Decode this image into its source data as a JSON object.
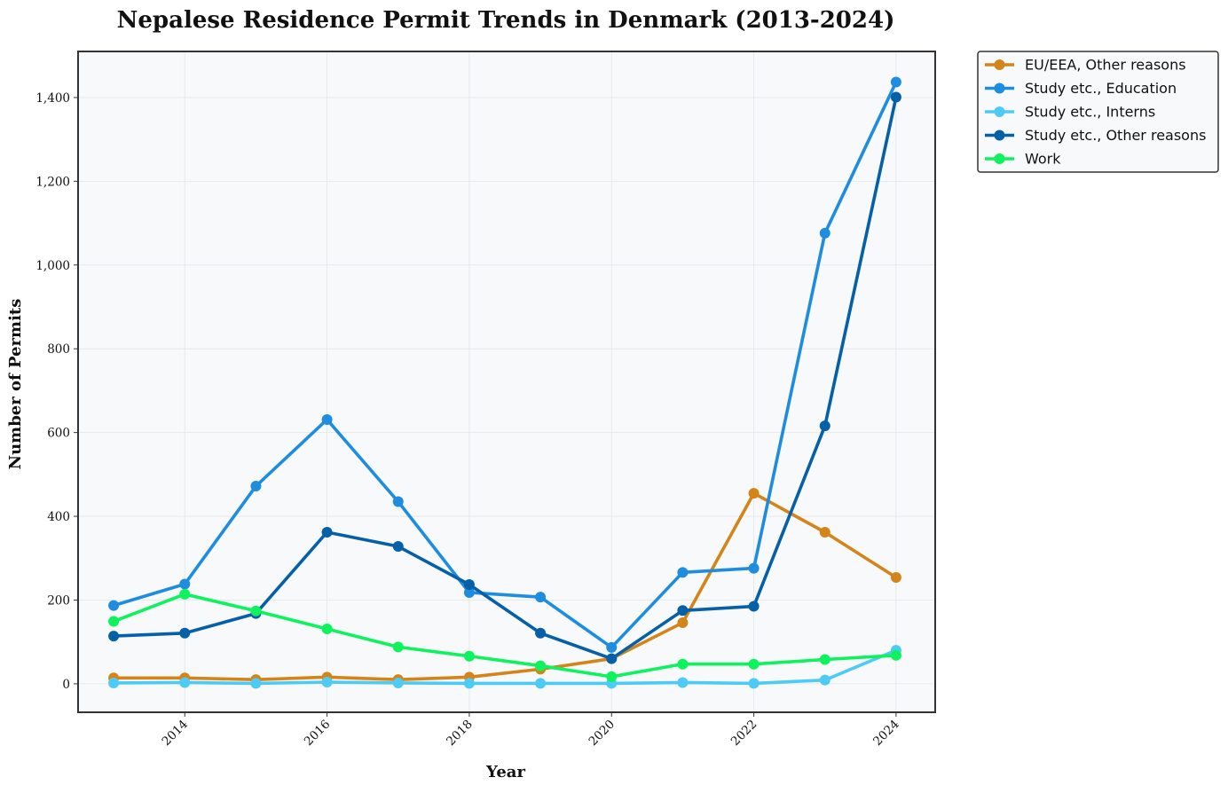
{
  "chart_data": {
    "type": "line",
    "title": "Nepalese Residence Permit Trends in Denmark (2013-2024)",
    "xlabel": "Year",
    "ylabel": "Number of Permits",
    "x": [
      2013,
      2014,
      2015,
      2016,
      2017,
      2018,
      2019,
      2020,
      2021,
      2022,
      2023,
      2024
    ],
    "xticks": [
      "2014",
      "2016",
      "2018",
      "2020",
      "2022",
      "2024"
    ],
    "yticks": [
      "0",
      "200",
      "400",
      "600",
      "800",
      "1,000",
      "1,200",
      "1,400"
    ],
    "xlim": [
      2012.5,
      2024.55
    ],
    "ylim": [
      -68,
      1510
    ],
    "grid": true,
    "legend_position": "outside-top-right",
    "plot_background": "#f7f9fb",
    "series": [
      {
        "name": "EU/EEA, Other reasons",
        "color": "#d4851a",
        "values": [
          14,
          14,
          10,
          16,
          10,
          16,
          35,
          60,
          146,
          455,
          362,
          254
        ]
      },
      {
        "name": "Study etc., Education",
        "color": "#1e8ddf",
        "values": [
          187,
          238,
          472,
          631,
          435,
          218,
          207,
          87,
          266,
          276,
          1076,
          1437
        ]
      },
      {
        "name": "Study etc., Interns",
        "color": "#4ecbf4",
        "values": [
          2,
          3,
          1,
          4,
          2,
          1,
          1,
          1,
          3,
          1,
          9,
          80
        ]
      },
      {
        "name": "Study etc., Other reasons",
        "color": "#0660a8",
        "values": [
          114,
          121,
          168,
          362,
          328,
          237,
          121,
          60,
          175,
          185,
          616,
          1401
        ]
      },
      {
        "name": "Work",
        "color": "#0df25d",
        "values": [
          149,
          214,
          174,
          131,
          88,
          66,
          43,
          17,
          47,
          47,
          58,
          68
        ]
      }
    ]
  }
}
